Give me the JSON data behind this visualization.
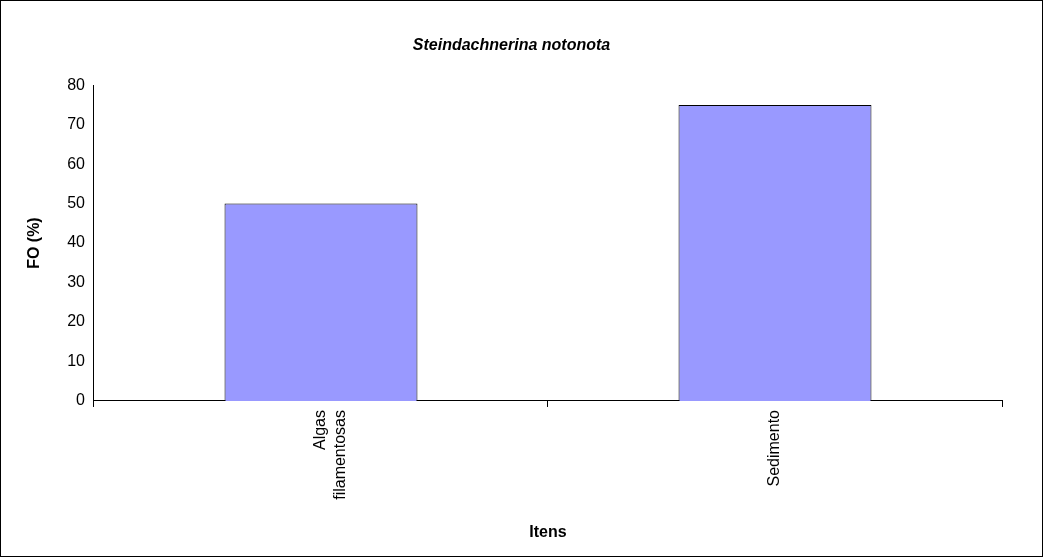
{
  "chart_data": {
    "type": "bar",
    "title": "Steindachnerina notonota",
    "xlabel": "Itens",
    "ylabel": "FO (%)",
    "categories": [
      "Algas filamentosas",
      "Sedimento"
    ],
    "values": [
      50,
      75
    ],
    "color": "#9999ff",
    "ylim": [
      0,
      80
    ],
    "yticks": [
      0,
      10,
      20,
      30,
      40,
      50,
      60,
      70,
      80
    ]
  }
}
